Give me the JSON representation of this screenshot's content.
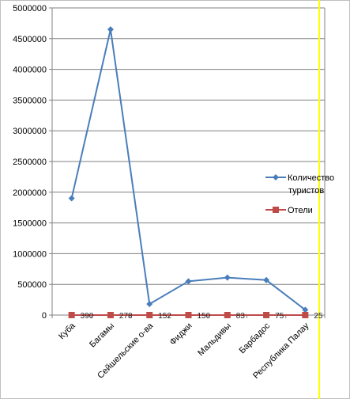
{
  "chart_data": {
    "type": "line",
    "title": "",
    "xlabel": "",
    "ylabel": "",
    "ylim": [
      0,
      5000000
    ],
    "yticks": [
      0,
      500000,
      1000000,
      1500000,
      2000000,
      2500000,
      3000000,
      3500000,
      4000000,
      4500000,
      5000000
    ],
    "grid": true,
    "legend": "right",
    "categories": [
      "Куба",
      "Багамы",
      "Сейшельские о-ва",
      "Фиджи",
      "Мальдивы",
      "Барбадос",
      "Республика Палау"
    ],
    "series": [
      {
        "name": "Количество туристов",
        "color": "#4a7ebb",
        "marker": "diamond",
        "values": [
          1900000,
          4650000,
          180000,
          550000,
          610000,
          570000,
          85000
        ]
      },
      {
        "name": "Отели",
        "color": "#be4b48",
        "marker": "square",
        "values": [
          390,
          278,
          152,
          150,
          83,
          75,
          25
        ],
        "data_labels": [
          "390",
          "278",
          "152",
          "150",
          "83",
          "75",
          "25"
        ]
      }
    ],
    "highlight_color": "#ffff00"
  }
}
